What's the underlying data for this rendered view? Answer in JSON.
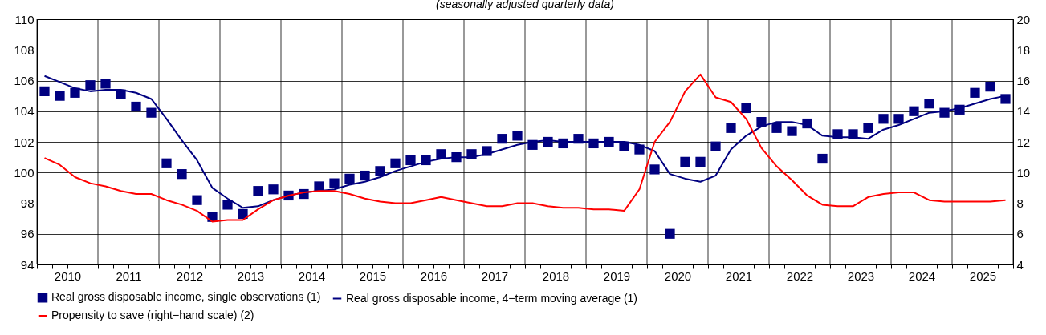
{
  "chart_data": {
    "type": "line",
    "subtitle": "(seasonally adjusted quarterly data)",
    "x": [
      2010.125,
      2010.375,
      2010.625,
      2010.875,
      2011.125,
      2011.375,
      2011.625,
      2011.875,
      2012.125,
      2012.375,
      2012.625,
      2012.875,
      2013.125,
      2013.375,
      2013.625,
      2013.875,
      2014.125,
      2014.375,
      2014.625,
      2014.875,
      2015.125,
      2015.375,
      2015.625,
      2015.875,
      2016.125,
      2016.375,
      2016.625,
      2016.875,
      2017.125,
      2017.375,
      2017.625,
      2017.875,
      2018.125,
      2018.375,
      2018.625,
      2018.875,
      2019.125,
      2019.375,
      2019.625,
      2019.875,
      2020.125,
      2020.375,
      2020.625,
      2020.875,
      2021.125,
      2021.375,
      2021.625,
      2021.875,
      2022.125,
      2022.375,
      2022.625,
      2022.875,
      2023.125,
      2023.375,
      2023.625,
      2023.875,
      2024.125,
      2024.375,
      2024.625,
      2024.875,
      2025.125,
      2025.375,
      2025.625,
      2025.875
    ],
    "series": [
      {
        "name": "Real gross disposable income, single observations (1)",
        "type": "scatter",
        "marker": "square",
        "color": "#000080",
        "values": [
          105.3,
          105.0,
          105.2,
          105.7,
          105.8,
          105.1,
          104.3,
          103.9,
          100.6,
          99.9,
          98.2,
          97.1,
          97.9,
          97.3,
          98.8,
          98.9,
          98.5,
          98.6,
          99.1,
          99.3,
          99.6,
          99.8,
          100.1,
          100.6,
          100.8,
          100.8,
          101.2,
          101.0,
          101.2,
          101.4,
          102.2,
          102.4,
          101.8,
          102.0,
          101.9,
          102.2,
          101.9,
          102.0,
          101.7,
          101.5,
          100.2,
          96.0,
          100.7,
          100.7,
          101.7,
          102.9,
          104.2,
          103.3,
          102.9,
          102.7,
          103.2,
          100.9,
          102.5,
          102.5,
          102.9,
          103.5,
          103.5,
          104.0,
          104.5,
          103.9,
          104.1,
          105.2,
          105.6,
          104.8
        ]
      },
      {
        "name": "Real gross disposable income, 4−term moving average (1)",
        "color": "#000080",
        "values": [
          106.3,
          105.9,
          105.5,
          105.3,
          105.4,
          105.4,
          105.2,
          104.8,
          103.5,
          102.1,
          100.8,
          99.0,
          98.3,
          97.7,
          97.8,
          98.2,
          98.5,
          98.7,
          98.8,
          98.9,
          99.2,
          99.4,
          99.7,
          100.1,
          100.4,
          100.7,
          100.9,
          101.0,
          101.0,
          101.2,
          101.5,
          101.8,
          102.0,
          102.1,
          102.0,
          102.0,
          102.0,
          102.0,
          102.0,
          101.8,
          101.4,
          99.9,
          99.6,
          99.4,
          99.8,
          101.5,
          102.4,
          103.0,
          103.3,
          103.3,
          103.1,
          102.4,
          102.3,
          102.3,
          102.2,
          102.8,
          103.1,
          103.5,
          103.9,
          104.0,
          104.2,
          104.5,
          104.8,
          105.0
        ]
      },
      {
        "name": "Propensity to save (right−hand scale) (2)",
        "axis": "y2",
        "color": "#ff0000",
        "values": [
          10.95,
          10.5,
          9.7,
          9.3,
          9.1,
          8.8,
          8.6,
          8.6,
          8.2,
          7.9,
          7.5,
          6.8,
          6.9,
          6.9,
          7.6,
          8.2,
          8.5,
          8.7,
          8.8,
          8.8,
          8.6,
          8.3,
          8.1,
          8.0,
          8.0,
          8.2,
          8.4,
          8.2,
          8.0,
          7.8,
          7.8,
          8.0,
          8.0,
          7.8,
          7.7,
          7.7,
          7.6,
          7.6,
          7.5,
          8.9,
          12.0,
          13.3,
          15.3,
          16.4,
          14.9,
          14.6,
          13.5,
          11.6,
          10.4,
          9.5,
          8.5,
          7.9,
          7.8,
          7.8,
          8.4,
          8.6,
          8.7,
          8.7,
          8.2,
          8.1,
          8.1,
          8.1,
          8.1,
          8.2
        ]
      }
    ],
    "xlim": [
      2010,
      2026
    ],
    "xticks": [
      {
        "value": 2010,
        "label": null
      },
      {
        "value": 2010.25,
        "label": null
      },
      {
        "value": 2010.5,
        "label": "2010"
      },
      {
        "value": 2010.75,
        "label": null
      },
      {
        "value": 2011,
        "label": null
      },
      {
        "value": 2011.25,
        "label": null
      },
      {
        "value": 2011.5,
        "label": "2011"
      },
      {
        "value": 2011.75,
        "label": null
      },
      {
        "value": 2012,
        "label": null
      },
      {
        "value": 2012.25,
        "label": null
      },
      {
        "value": 2012.5,
        "label": "2012"
      },
      {
        "value": 2012.75,
        "label": null
      },
      {
        "value": 2013,
        "label": null
      },
      {
        "value": 2013.25,
        "label": null
      },
      {
        "value": 2013.5,
        "label": "2013"
      },
      {
        "value": 2013.75,
        "label": null
      },
      {
        "value": 2014,
        "label": null
      },
      {
        "value": 2014.25,
        "label": null
      },
      {
        "value": 2014.5,
        "label": "2014"
      },
      {
        "value": 2014.75,
        "label": null
      },
      {
        "value": 2015,
        "label": null
      },
      {
        "value": 2015.25,
        "label": null
      },
      {
        "value": 2015.5,
        "label": "2015"
      },
      {
        "value": 2015.75,
        "label": null
      },
      {
        "value": 2016,
        "label": null
      },
      {
        "value": 2016.25,
        "label": null
      },
      {
        "value": 2016.5,
        "label": "2016"
      },
      {
        "value": 2016.75,
        "label": null
      },
      {
        "value": 2017,
        "label": null
      },
      {
        "value": 2017.25,
        "label": null
      },
      {
        "value": 2017.5,
        "label": "2017"
      },
      {
        "value": 2017.75,
        "label": null
      },
      {
        "value": 2018,
        "label": null
      },
      {
        "value": 2018.25,
        "label": null
      },
      {
        "value": 2018.5,
        "label": "2018"
      },
      {
        "value": 2018.75,
        "label": null
      },
      {
        "value": 2019,
        "label": null
      },
      {
        "value": 2019.25,
        "label": null
      },
      {
        "value": 2019.5,
        "label": "2019"
      },
      {
        "value": 2019.75,
        "label": null
      },
      {
        "value": 2020,
        "label": null
      },
      {
        "value": 2020.25,
        "label": null
      },
      {
        "value": 2020.5,
        "label": "2020"
      },
      {
        "value": 2020.75,
        "label": null
      },
      {
        "value": 2021,
        "label": null
      },
      {
        "value": 2021.25,
        "label": null
      },
      {
        "value": 2021.5,
        "label": "2021"
      },
      {
        "value": 2021.75,
        "label": null
      },
      {
        "value": 2022,
        "label": null
      },
      {
        "value": 2022.25,
        "label": null
      },
      {
        "value": 2022.5,
        "label": "2022"
      },
      {
        "value": 2022.75,
        "label": null
      },
      {
        "value": 2023,
        "label": null
      },
      {
        "value": 2023.25,
        "label": null
      },
      {
        "value": 2023.5,
        "label": "2023"
      },
      {
        "value": 2023.75,
        "label": null
      },
      {
        "value": 2024,
        "label": null
      },
      {
        "value": 2024.25,
        "label": null
      },
      {
        "value": 2024.5,
        "label": "2024"
      },
      {
        "value": 2024.75,
        "label": null
      },
      {
        "value": 2025,
        "label": null
      },
      {
        "value": 2025.25,
        "label": null
      },
      {
        "value": 2025.5,
        "label": "2025"
      },
      {
        "value": 2025.75,
        "label": null
      },
      {
        "value": 2026,
        "label": null
      }
    ],
    "ylim": [
      94,
      110
    ],
    "yticks": [
      94,
      96,
      98,
      100,
      102,
      104,
      106,
      108,
      110
    ],
    "y2lim": [
      4,
      20
    ],
    "y2ticks": [
      4,
      6,
      8,
      10,
      12,
      14,
      16,
      18,
      20
    ],
    "grid": true,
    "legend": "bottom",
    "line_style": "solid"
  }
}
